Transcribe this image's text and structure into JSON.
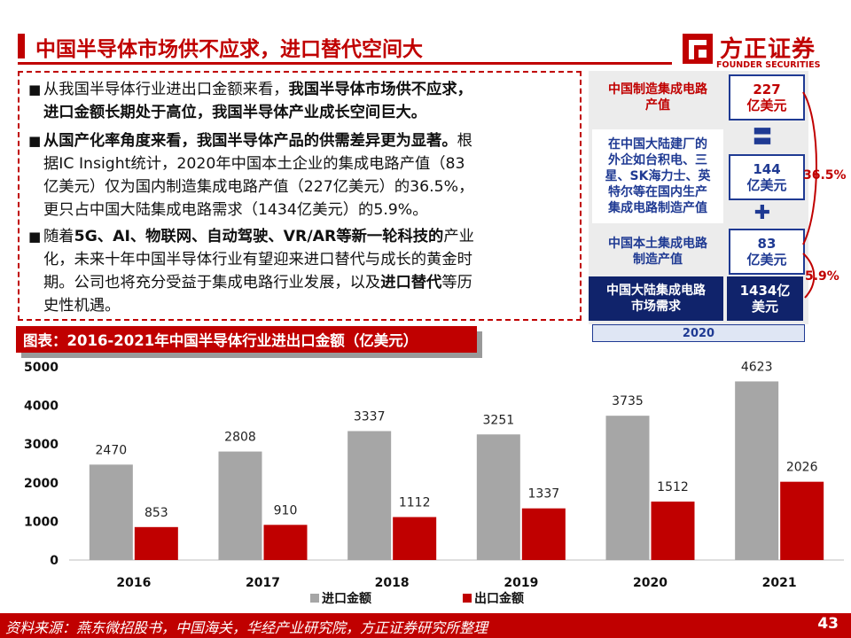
{
  "title": "中国半导体市场供不应求，进口替代空间大",
  "logo": {
    "cn": "方正证券",
    "en": "FOUNDER SECURITIES"
  },
  "bullets": {
    "p1": {
      "l1a": "从我国半导体行业进出口金额来看，",
      "l1b": "我国半导体市场供不应求，",
      "l2": "进口金额长期处于高位，我国半导体产业成长空间巨大。"
    },
    "p2": {
      "l1a": "从国产化率角度来看，我国半导体产品的供需差异更为显著。",
      "l1b": "根",
      "l2": "据IC Insight统计，2020年中国本土企业的集成电路产值（83",
      "l3": "亿美元）仅为国内制造集成电路产值（227亿美元）的36.5%，",
      "l4": "更只占中国大陆集成电路需求（1434亿美元）的5.9%。"
    },
    "p3": {
      "l1a": "随着",
      "l1b": "5G、AI、物联网、自动驾驶、VR/AR等新一轮科技的",
      "l1c": "产业",
      "l2": "化，未来十年中国半导体行业有望迎来进口替代与成长的黄金时",
      "l3a": "期。公司也将充分受益于集成电路行业发展，以及",
      "l3b": "进口替代",
      "l3c": "等历",
      "l4": "史性机遇。"
    }
  },
  "flow": {
    "domestic_mfg_label": "中国制造集成电路\n产值",
    "domestic_mfg_value": "227\n亿美元",
    "foreign_label": "在中国大陆建厂的\n外企如台积电、三\n星、SK海力士、英\n特尔等在国内生产\n集成电路制造产值",
    "foreign_value": "144\n亿美元",
    "local_label": "中国本土集成电路\n制造产值",
    "local_value": "83\n亿美元",
    "demand_label": "中国大陆集成电路\n市场需求",
    "demand_value": "1434亿\n美元",
    "equals": "〓",
    "plus": "✚",
    "year": "2020",
    "pct_365": "36.5%",
    "pct_59": "5.9%",
    "colors": {
      "red": "#c00000",
      "navy": "#10236b",
      "blue": "#1f3a93"
    }
  },
  "chart_title": "图表：2016-2021年中国半导体行业进出口金额（亿美元）",
  "chart_data": {
    "type": "bar",
    "title": "2016-2021年中国半导体行业进出口金额（亿美元）",
    "categories": [
      "2016",
      "2017",
      "2018",
      "2019",
      "2020",
      "2021"
    ],
    "series": [
      {
        "name": "进口金额",
        "values": [
          2470,
          2808,
          3337,
          3251,
          3735,
          4623
        ],
        "color": "#a6a6a6"
      },
      {
        "name": "出口金额",
        "values": [
          853,
          910,
          1112,
          1337,
          1512,
          2026
        ],
        "color": "#c00000"
      }
    ],
    "ylim": [
      0,
      5000
    ],
    "yticks": [
      0,
      1000,
      2000,
      3000,
      4000,
      5000
    ],
    "xlabel": "",
    "ylabel": "",
    "grid": false,
    "legend": "bottom"
  },
  "footer": {
    "source": "资料来源：燕东微招股书，中国海关，华经产业研究院，方正证券研究所整理",
    "page": "43"
  }
}
